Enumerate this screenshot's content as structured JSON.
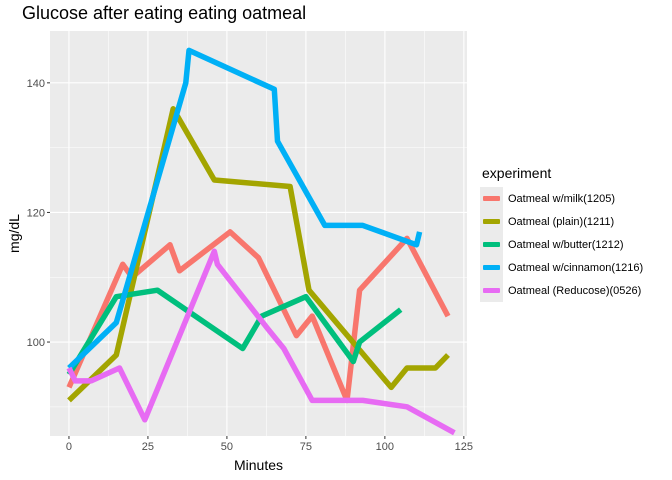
{
  "chart_data": {
    "type": "line",
    "title": "Glucose after eating eating oatmeal",
    "xlabel": "Minutes",
    "ylabel": "mg/dL",
    "xlim": [
      -6,
      126
    ],
    "ylim": [
      85.5,
      148
    ],
    "xticks": [
      0,
      25,
      50,
      75,
      100,
      125
    ],
    "yticks": [
      100,
      120,
      140
    ],
    "grid": true,
    "legend": {
      "title": "experiment",
      "position": "right"
    },
    "series": [
      {
        "name": "Oatmeal w/milk(1205)",
        "color": "#F8766D",
        "x": [
          0,
          17,
          20,
          32,
          35,
          51,
          60,
          62,
          72,
          77,
          88,
          92,
          107,
          120
        ],
        "y": [
          93,
          112,
          110,
          115,
          111,
          117,
          113,
          111,
          101,
          104,
          91,
          108,
          116,
          104
        ]
      },
      {
        "name": "Oatmeal (plain)(1211)",
        "color": "#A3A500",
        "x": [
          0,
          15,
          33,
          46,
          70,
          76,
          102,
          107,
          116,
          120
        ],
        "y": [
          91,
          98,
          136,
          125,
          124,
          108,
          93,
          96,
          96,
          98
        ]
      },
      {
        "name": "Oatmeal w/butter(1212)",
        "color": "#00BF7D",
        "x": [
          0,
          15,
          28,
          55,
          61,
          75,
          90,
          92,
          105
        ],
        "y": [
          95,
          107,
          108,
          99,
          104,
          107,
          97,
          100,
          105
        ]
      },
      {
        "name": "Oatmeal w/cinnamon(1216)",
        "color": "#00B0F6",
        "x": [
          0,
          15,
          37,
          38,
          65,
          66,
          81,
          93,
          110,
          111
        ],
        "y": [
          96,
          103,
          140,
          145,
          139,
          131,
          118,
          118,
          115,
          117
        ]
      },
      {
        "name": "Oatmeal (Reducose)(0526)",
        "color": "#E76BF3",
        "x": [
          0,
          2,
          7,
          16,
          24,
          46,
          47,
          63,
          68,
          77,
          93,
          107,
          122
        ],
        "y": [
          96,
          94,
          94,
          96,
          88,
          114,
          112,
          102,
          99,
          91,
          91,
          90,
          86
        ]
      }
    ]
  }
}
